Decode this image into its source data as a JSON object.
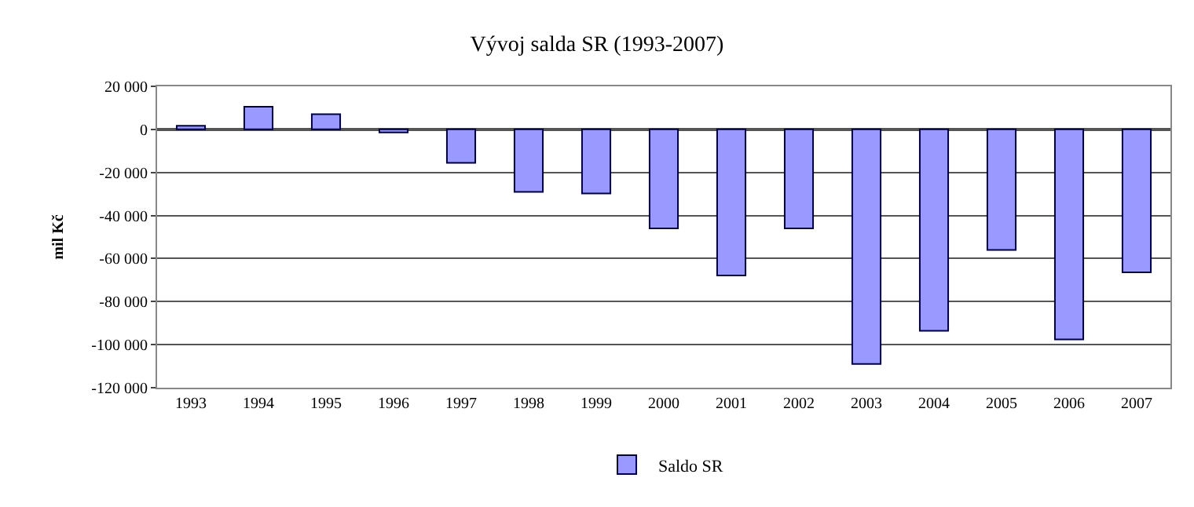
{
  "chart_data": {
    "type": "bar",
    "title": "Vývoj salda SR (1993-2007)",
    "ylabel": "mil Kč",
    "categories": [
      "1993",
      "1994",
      "1995",
      "1996",
      "1997",
      "1998",
      "1999",
      "2000",
      "2001",
      "2002",
      "2003",
      "2004",
      "2005",
      "2006",
      "2007"
    ],
    "series": [
      {
        "name": "Saldo SR",
        "color": "#9999ff",
        "values": [
          1700,
          10500,
          7100,
          -1400,
          -15500,
          -29000,
          -29800,
          -46000,
          -67900,
          -46000,
          -109000,
          -93600,
          -56000,
          -97600,
          -66400
        ]
      }
    ],
    "ylim": [
      -120000,
      20000
    ],
    "yticks": [
      {
        "value": -120000,
        "label": "-120 000"
      },
      {
        "value": -100000,
        "label": "-100 000"
      },
      {
        "value": -80000,
        "label": "-80 000"
      },
      {
        "value": -60000,
        "label": "-60 000"
      },
      {
        "value": -40000,
        "label": "-40 000"
      },
      {
        "value": -20000,
        "label": "-20 000"
      },
      0,
      {
        "value": 20000,
        "label": "20 000"
      }
    ],
    "grid": "y",
    "legend": "bottom"
  }
}
